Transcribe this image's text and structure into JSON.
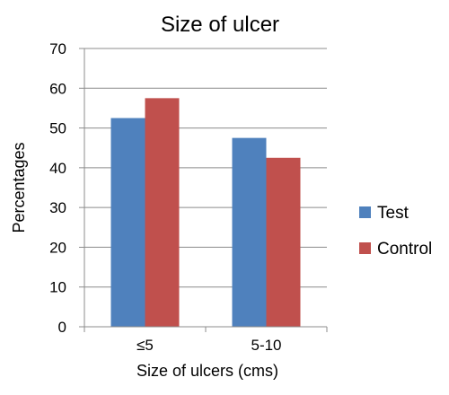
{
  "chart_data": {
    "type": "bar",
    "title": "Size of ulcer",
    "xlabel": "Size of ulcers (cms)",
    "ylabel": "Percentages",
    "categories": [
      "≤5",
      "5-10"
    ],
    "series": [
      {
        "name": "Test",
        "values": [
          52.5,
          47.5
        ],
        "color": "#4F81BD"
      },
      {
        "name": "Control",
        "values": [
          57.5,
          42.5
        ],
        "color": "#C0504D"
      }
    ],
    "ylim": [
      0,
      70
    ],
    "yticks": [
      0,
      10,
      20,
      30,
      40,
      50,
      60,
      70
    ],
    "grid": true,
    "legend": "right"
  }
}
